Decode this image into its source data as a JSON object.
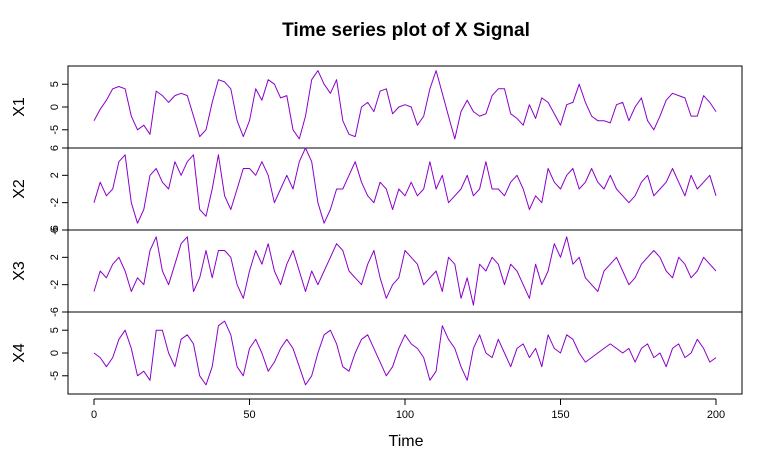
{
  "chart_data": {
    "type": "line",
    "title": "Time series plot of X Signal",
    "xlabel": "Time",
    "xlim": [
      0,
      200
    ],
    "x_ticks": [
      "0",
      "50",
      "100",
      "150",
      "200"
    ],
    "x_tick_values": [
      0,
      50,
      100,
      150,
      200
    ],
    "line_color": "#8B00C9",
    "x": [
      0,
      2,
      4,
      6,
      8,
      10,
      12,
      14,
      16,
      18,
      20,
      22,
      24,
      26,
      28,
      30,
      32,
      34,
      36,
      38,
      40,
      42,
      44,
      46,
      48,
      50,
      52,
      54,
      56,
      58,
      60,
      62,
      64,
      66,
      68,
      70,
      72,
      74,
      76,
      78,
      80,
      82,
      84,
      86,
      88,
      90,
      92,
      94,
      96,
      98,
      100,
      102,
      104,
      106,
      108,
      110,
      112,
      114,
      116,
      118,
      120,
      122,
      124,
      126,
      128,
      130,
      132,
      134,
      136,
      138,
      140,
      142,
      144,
      146,
      148,
      150,
      152,
      154,
      156,
      158,
      160,
      162,
      164,
      166,
      168,
      170,
      172,
      174,
      176,
      178,
      180,
      182,
      184,
      186,
      188,
      190,
      192,
      194,
      196,
      198,
      200
    ],
    "series": [
      {
        "name": "X1",
        "ylim": [
          -9,
          9
        ],
        "y_ticks": [
          "-5",
          "0",
          "5"
        ],
        "y_tick_values": [
          -5,
          0,
          5
        ],
        "values": [
          -3,
          -0.5,
          1.5,
          4,
          4.5,
          4,
          -2,
          -5,
          -4,
          -6,
          3.5,
          2.5,
          1,
          2.5,
          3,
          2.5,
          -2,
          -6.5,
          -5,
          1,
          6,
          5.5,
          4,
          -3,
          -6.5,
          -3,
          4,
          1.5,
          6,
          5,
          2,
          2.5,
          -5,
          -7,
          -2,
          6,
          8,
          5,
          3,
          6,
          -3,
          -6,
          -6.5,
          0,
          1,
          -1,
          3.5,
          4,
          -1.5,
          0,
          0.5,
          0,
          -4,
          -2,
          4,
          8,
          3,
          -2,
          -7,
          -1,
          1.5,
          -1,
          -2,
          -1.5,
          2.5,
          4,
          4,
          -1.5,
          -2.5,
          -4,
          0.5,
          -2.5,
          2,
          1,
          -1.5,
          -4,
          0.5,
          1,
          5,
          1,
          -2,
          -3,
          -3,
          -3.5,
          0.5,
          1,
          -3,
          0,
          2,
          -3,
          -5,
          -2,
          1.5,
          3,
          2.5,
          2,
          -2,
          -2,
          2.5,
          1,
          -1
        ]
      },
      {
        "name": "X2",
        "ylim": [
          -6,
          6
        ],
        "y_ticks": [
          "-6",
          "-2",
          "2",
          "6"
        ],
        "y_tick_values": [
          -6,
          -2,
          2,
          6
        ],
        "values": [
          -2,
          1,
          -1,
          0,
          4,
          5,
          -2,
          -5,
          -3,
          2,
          3,
          1,
          0,
          4,
          2,
          4,
          5,
          -3,
          -4,
          0,
          5,
          -1,
          -3,
          0,
          3,
          3,
          2,
          4,
          2,
          -2,
          0,
          2,
          0,
          4,
          6,
          4,
          -2,
          -5,
          -3,
          0,
          0,
          2,
          4,
          1,
          -1,
          -2,
          1,
          0,
          -3,
          0,
          -1,
          1,
          -1,
          0,
          4,
          0,
          2,
          -2,
          -1,
          0,
          2,
          -1,
          0,
          4,
          0,
          0,
          -1,
          1,
          2,
          0,
          -3,
          -1,
          -2,
          3,
          1,
          0,
          2,
          3,
          0,
          1,
          3,
          1,
          0,
          2,
          0,
          -1,
          -2,
          -1,
          1,
          2,
          -1,
          0,
          1,
          3,
          1,
          -1,
          2,
          0,
          1,
          2,
          -1
        ]
      },
      {
        "name": "X3",
        "ylim": [
          -6,
          6
        ],
        "y_ticks": [
          "-6",
          "-2",
          "2",
          "6"
        ],
        "y_tick_values": [
          -6,
          -2,
          2,
          6
        ],
        "values": [
          -3,
          0,
          -1,
          1,
          2,
          0,
          -3,
          -1,
          -2,
          3,
          5,
          0,
          -2,
          1,
          4,
          5,
          -3,
          -1,
          3,
          -1,
          3,
          3,
          2,
          -2,
          -4,
          0,
          3,
          1,
          4,
          0,
          -2,
          1,
          3,
          0,
          -3,
          0,
          -2,
          0,
          2,
          4,
          3,
          0,
          -1,
          -2,
          1,
          3,
          -1,
          -4,
          -2,
          -1,
          3,
          2,
          1,
          -2,
          -1,
          0,
          -3,
          2,
          1,
          -4,
          -1,
          -5,
          1,
          0,
          2,
          1,
          -2,
          1,
          0,
          -2,
          -4,
          1,
          -2,
          0,
          4,
          2,
          5,
          1,
          2,
          -1,
          -2,
          -3,
          0,
          1,
          2,
          0,
          -2,
          -1,
          1,
          2,
          3,
          2,
          0,
          -1,
          2,
          1,
          -1,
          0,
          2,
          1,
          0
        ]
      },
      {
        "name": "X4",
        "ylim": [
          -9,
          9
        ],
        "y_ticks": [
          "-5",
          "0",
          "5"
        ],
        "y_tick_values": [
          -5,
          0,
          5
        ],
        "values": [
          0,
          -1,
          -3,
          -1,
          3,
          5,
          1,
          -5,
          -4,
          -6,
          5,
          5,
          0,
          -3,
          3,
          4,
          2,
          -5,
          -7,
          -3,
          6,
          7,
          4,
          -3,
          -5,
          1,
          3,
          0,
          -4,
          -2,
          1,
          3,
          1,
          -3,
          -7,
          -5,
          0,
          4,
          5,
          2,
          -3,
          -4,
          0,
          3,
          4,
          1,
          -2,
          -5,
          -3,
          1,
          4,
          2,
          1,
          -1,
          -6,
          -4,
          6,
          3,
          1,
          -3,
          -6,
          1,
          4,
          0,
          -1,
          3,
          0,
          -3,
          1,
          2,
          -1,
          1,
          -3,
          4,
          1,
          0,
          4,
          3,
          0,
          -2,
          -1,
          0,
          1,
          2,
          1,
          0,
          1,
          -2,
          1,
          2,
          -1,
          0,
          -3,
          1,
          2,
          -1,
          0,
          3,
          1,
          -2,
          -1
        ]
      }
    ]
  }
}
